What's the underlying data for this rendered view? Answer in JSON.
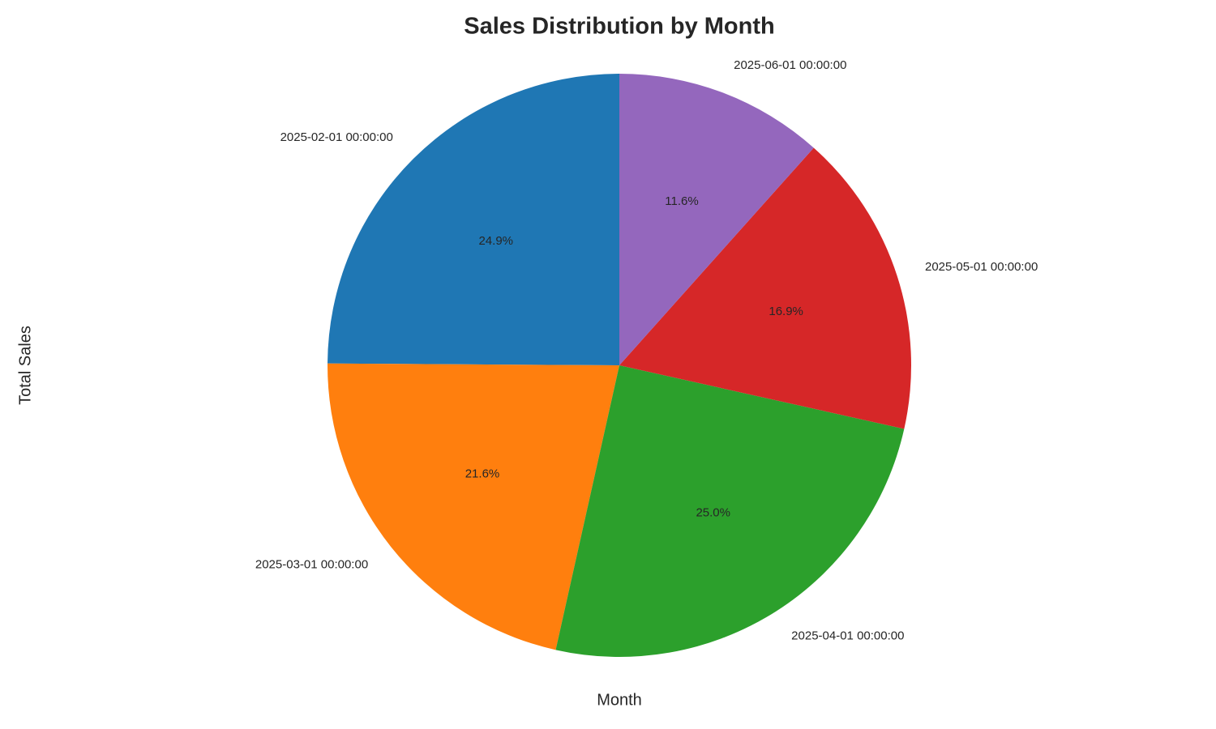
{
  "chart_data": {
    "type": "pie",
    "title": "Sales Distribution by Month",
    "xlabel": "Month",
    "ylabel": "Total Sales",
    "categories": [
      "2025-02-01 00:00:00",
      "2025-03-01 00:00:00",
      "2025-04-01 00:00:00",
      "2025-05-01 00:00:00",
      "2025-06-01 00:00:00"
    ],
    "values": [
      24.9,
      21.6,
      25.0,
      16.9,
      11.6
    ],
    "value_labels": [
      "24.9%",
      "21.6%",
      "25.0%",
      "16.9%",
      "11.6%"
    ],
    "colors": [
      "#1f77b4",
      "#ff7f0e",
      "#2ca02c",
      "#d62728",
      "#9467bd"
    ],
    "start_angle": 90
  }
}
